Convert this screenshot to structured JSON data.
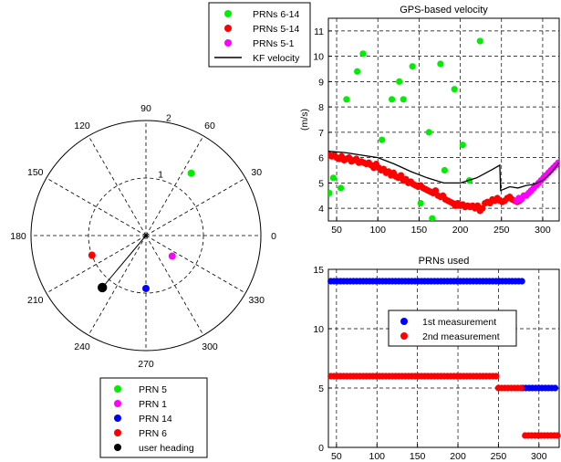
{
  "chart_data": [
    {
      "id": "polar",
      "type": "scatter",
      "subtype": "polar",
      "r_ticks": [
        "1",
        "2"
      ],
      "r_max": 2,
      "angle_ticks": [
        "0",
        "30",
        "60",
        "90",
        "120",
        "150",
        "180",
        "210",
        "240",
        "270",
        "300",
        "330"
      ],
      "angle_tick_degrees": [
        0,
        30,
        60,
        90,
        120,
        150,
        180,
        210,
        240,
        270,
        300,
        330
      ],
      "grid": true,
      "legend_position": "bottom",
      "series": [
        {
          "name": "PRN 5",
          "color": "#00ee00",
          "points": [
            {
              "theta": 54,
              "r": 1.34
            }
          ]
        },
        {
          "name": "PRN 1",
          "color": "#ff00ff",
          "points": [
            {
              "theta": 322,
              "r": 0.58
            }
          ]
        },
        {
          "name": "PRN 14",
          "color": "#0000ff",
          "points": [
            {
              "theta": 270,
              "r": 0.92
            }
          ]
        },
        {
          "name": "PRN 6",
          "color": "#ff0000",
          "points": [
            {
              "theta": 200,
              "r": 1.0
            }
          ]
        },
        {
          "name": "user heading",
          "color": "#000000",
          "points": [
            {
              "theta": 230,
              "r": 1.18
            }
          ],
          "line_from_center": true
        }
      ]
    },
    {
      "id": "velocity",
      "type": "scatter",
      "title": "GPS-based velocity",
      "xlabel": "",
      "ylabel": "(m/s)",
      "xlim": [
        40,
        320
      ],
      "ylim": [
        3.5,
        11.5
      ],
      "xticks": [
        50,
        100,
        150,
        200,
        250,
        300
      ],
      "yticks": [
        4,
        5,
        6,
        7,
        8,
        9,
        10,
        11
      ],
      "grid": true,
      "legend_position": "top-left outside",
      "series": [
        {
          "name": "PRNs 6-14",
          "color": "#00ee00",
          "kind": "points",
          "x": [
            41,
            46,
            55,
            62,
            75,
            82,
            105,
            117,
            126,
            131,
            142,
            152,
            162,
            166,
            176,
            181,
            193,
            203,
            211,
            224
          ],
          "y": [
            4.6,
            5.2,
            4.8,
            8.3,
            9.4,
            10.1,
            6.7,
            8.3,
            9.0,
            8.3,
            9.6,
            4.2,
            7.0,
            3.6,
            9.7,
            5.5,
            8.7,
            6.5,
            5.1,
            10.6
          ]
        },
        {
          "name": "PRNs 5-14",
          "color": "#ff0000",
          "kind": "points",
          "x": [
            41,
            44,
            47,
            50,
            53,
            56,
            59,
            62,
            65,
            68,
            71,
            74,
            77,
            80,
            83,
            86,
            89,
            92,
            95,
            98,
            101,
            104,
            107,
            110,
            113,
            116,
            119,
            122,
            125,
            128,
            131,
            134,
            137,
            140,
            143,
            146,
            149,
            152,
            155,
            158,
            161,
            164,
            167,
            170,
            173,
            176,
            179,
            182,
            185,
            188,
            191,
            194,
            197,
            200,
            203,
            206,
            209,
            212,
            215,
            218,
            221,
            224,
            227,
            230,
            233,
            236,
            239,
            242,
            245,
            248,
            251,
            254,
            257,
            260,
            263,
            266,
            269,
            272
          ],
          "y": [
            6.1,
            6.05,
            6.1,
            6.0,
            5.95,
            6.05,
            5.9,
            5.95,
            6.0,
            5.85,
            5.9,
            5.95,
            5.8,
            5.85,
            5.8,
            5.75,
            5.8,
            5.7,
            5.6,
            5.75,
            5.6,
            5.5,
            5.55,
            5.4,
            5.45,
            5.3,
            5.4,
            5.25,
            5.2,
            5.3,
            5.1,
            5.15,
            5.0,
            5.05,
            4.95,
            4.9,
            4.85,
            4.9,
            4.8,
            4.75,
            4.7,
            4.65,
            4.6,
            4.7,
            4.5,
            4.45,
            4.5,
            4.35,
            4.3,
            4.25,
            4.2,
            4.1,
            4.2,
            4.1,
            4.15,
            4.05,
            4.1,
            4.05,
            4.1,
            4.0,
            4.1,
            3.9,
            4.0,
            4.2,
            4.25,
            4.2,
            4.35,
            4.3,
            4.4,
            4.3,
            4.25,
            4.3,
            4.4,
            4.45,
            4.35,
            4.3,
            4.25,
            4.3
          ]
        },
        {
          "name": "PRNs 5-1",
          "color": "#ff00ff",
          "kind": "points",
          "x": [
            268,
            271,
            274,
            277,
            280,
            283,
            286,
            289,
            292,
            295,
            298,
            301,
            304,
            307,
            310,
            313,
            316,
            319
          ],
          "y": [
            4.3,
            4.4,
            4.35,
            4.5,
            4.5,
            4.6,
            4.7,
            4.8,
            4.9,
            5.0,
            5.1,
            5.2,
            5.3,
            5.4,
            5.5,
            5.6,
            5.7,
            5.8
          ]
        },
        {
          "name": "KF velocity",
          "color": "#000000",
          "kind": "line",
          "x": [
            40,
            60,
            80,
            100,
            120,
            140,
            160,
            180,
            200,
            220,
            240,
            248,
            249,
            260,
            270,
            280,
            290,
            300,
            310,
            320
          ],
          "y": [
            6.25,
            6.2,
            6.1,
            6.0,
            5.75,
            5.45,
            5.2,
            5.0,
            5.0,
            5.2,
            5.55,
            5.7,
            4.7,
            4.85,
            4.8,
            4.9,
            4.95,
            5.1,
            5.4,
            5.8
          ]
        }
      ]
    },
    {
      "id": "prns",
      "type": "scatter",
      "title": "PRNs used",
      "xlim": [
        40,
        325
      ],
      "ylim": [
        0,
        15
      ],
      "xticks": [
        50,
        100,
        150,
        200,
        250,
        300
      ],
      "yticks": [
        0,
        5,
        10,
        15
      ],
      "grid": true,
      "legend_position": "center",
      "series": [
        {
          "name": "1st measurement",
          "color": "#0000ff",
          "segments": [
            {
              "y": 14,
              "x_start": 43,
              "x_end": 280,
              "step": 4
            },
            {
              "y": 5,
              "x_start": 280,
              "x_end": 323,
              "step": 4
            }
          ]
        },
        {
          "name": "2nd measurement",
          "color": "#ff0000",
          "segments": [
            {
              "y": 6,
              "x_start": 43,
              "x_end": 248,
              "step": 4
            },
            {
              "y": 5,
              "x_start": 250,
              "x_end": 278,
              "step": 4
            },
            {
              "y": 1,
              "x_start": 283,
              "x_end": 323,
              "step": 4
            }
          ]
        }
      ]
    }
  ]
}
